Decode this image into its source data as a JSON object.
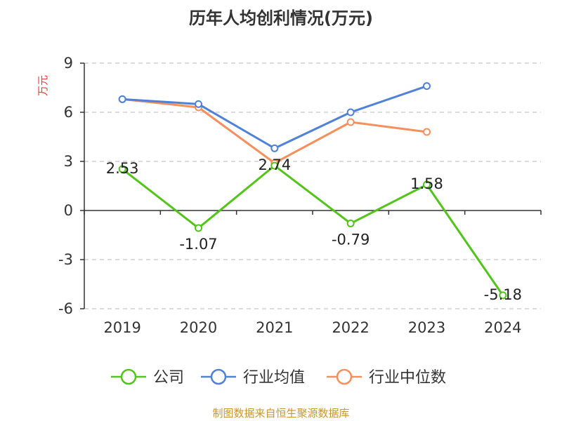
{
  "chart_data": {
    "type": "line",
    "title": "历年人均创利情况(万元)",
    "ylabel": "万元",
    "categories": [
      "2019",
      "2020",
      "2021",
      "2022",
      "2023",
      "2024"
    ],
    "ylim": [
      -6,
      9
    ],
    "yticks": [
      -6,
      -3,
      0,
      3,
      6,
      9
    ],
    "grid": true,
    "legend_position": "bottom",
    "series": [
      {
        "name": "公司",
        "color": "#52c41a",
        "values": [
          2.53,
          -1.07,
          2.74,
          -0.79,
          1.58,
          -5.18
        ],
        "show_labels": true
      },
      {
        "name": "行业均值",
        "color": "#4f81d9",
        "values": [
          6.8,
          6.5,
          3.8,
          6.0,
          7.6,
          null
        ],
        "show_labels": false
      },
      {
        "name": "行业中位数",
        "color": "#f58f5c",
        "values": [
          6.8,
          6.3,
          2.9,
          5.4,
          4.8,
          null
        ],
        "show_labels": false
      }
    ]
  },
  "footer": {
    "source": "制图数据来自恒生聚源数据库"
  }
}
